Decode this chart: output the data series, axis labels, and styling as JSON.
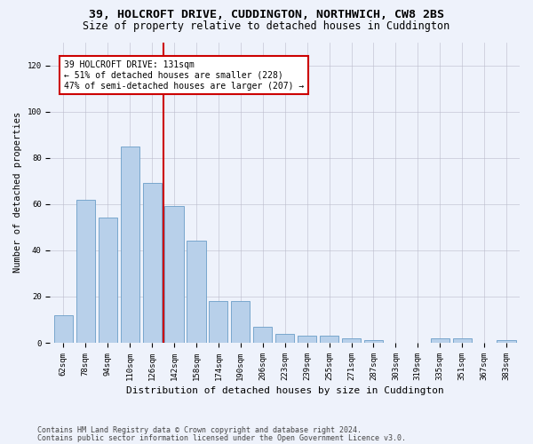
{
  "title": "39, HOLCROFT DRIVE, CUDDINGTON, NORTHWICH, CW8 2BS",
  "subtitle": "Size of property relative to detached houses in Cuddington",
  "xlabel": "Distribution of detached houses by size in Cuddington",
  "ylabel": "Number of detached properties",
  "categories": [
    "62sqm",
    "78sqm",
    "94sqm",
    "110sqm",
    "126sqm",
    "142sqm",
    "158sqm",
    "174sqm",
    "190sqm",
    "206sqm",
    "223sqm",
    "239sqm",
    "255sqm",
    "271sqm",
    "287sqm",
    "303sqm",
    "319sqm",
    "335sqm",
    "351sqm",
    "367sqm",
    "383sqm"
  ],
  "values": [
    12,
    62,
    54,
    85,
    69,
    59,
    44,
    18,
    18,
    7,
    4,
    3,
    3,
    2,
    1,
    0,
    0,
    2,
    2,
    0,
    1
  ],
  "bar_color": "#b8d0ea",
  "bar_edge_color": "#6a9ec8",
  "vline_x_index": 4.5,
  "vline_color": "#cc0000",
  "annotation_text": "39 HOLCROFT DRIVE: 131sqm\n← 51% of detached houses are smaller (228)\n47% of semi-detached houses are larger (207) →",
  "ylim": [
    0,
    130
  ],
  "yticks": [
    0,
    20,
    40,
    60,
    80,
    100,
    120
  ],
  "footer1": "Contains HM Land Registry data © Crown copyright and database right 2024.",
  "footer2": "Contains public sector information licensed under the Open Government Licence v3.0.",
  "background_color": "#eef2fb",
  "plot_background": "#eef2fb",
  "grid_color": "#bbbbcc",
  "title_fontsize": 9.5,
  "subtitle_fontsize": 8.5,
  "xlabel_fontsize": 8,
  "ylabel_fontsize": 7.5,
  "tick_fontsize": 6.5,
  "annotation_fontsize": 7,
  "footer_fontsize": 6
}
